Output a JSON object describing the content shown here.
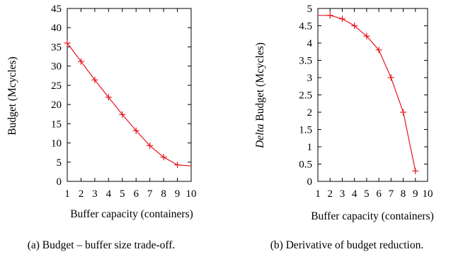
{
  "chart_data": [
    {
      "type": "line",
      "xlabel": "Buffer capacity (containers)",
      "ylabel": "Budget (Mcycles)",
      "caption": "(a) Budget – buffer size trade-off.",
      "xlim": [
        1,
        10
      ],
      "ylim": [
        0,
        45
      ],
      "xticks": [
        1,
        2,
        3,
        4,
        5,
        6,
        7,
        8,
        9,
        10
      ],
      "yticks": [
        0,
        5,
        10,
        15,
        20,
        25,
        30,
        35,
        40,
        45
      ],
      "color": "#e8141e",
      "series": [
        {
          "x": [
            1,
            2,
            3,
            4,
            5,
            6,
            7,
            8,
            9
          ],
          "y": [
            36,
            31.2,
            26.4,
            21.9,
            17.4,
            13.2,
            9.3,
            6.3,
            4.3
          ]
        }
      ],
      "line_end": [
        10,
        4
      ]
    },
    {
      "type": "line",
      "xlabel": "Buffer capacity (containers)",
      "ylabel_italic": "Delta",
      "ylabel_rest": " Budget (Mcycles)",
      "caption": "(b) Derivative of budget reduction.",
      "xlim": [
        1,
        10
      ],
      "ylim": [
        0,
        5
      ],
      "xticks": [
        1,
        2,
        3,
        4,
        5,
        6,
        7,
        8,
        9,
        10
      ],
      "yticks": [
        0,
        0.5,
        1,
        1.5,
        2,
        2.5,
        3,
        3.5,
        4,
        4.5,
        5
      ],
      "color": "#e8141e",
      "series": [
        {
          "x": [
            2,
            3,
            4,
            5,
            6,
            7,
            8,
            9
          ],
          "y": [
            4.8,
            4.7,
            4.5,
            4.2,
            3.8,
            3.0,
            2.0,
            0.3
          ]
        }
      ],
      "line_start": [
        1,
        4.8
      ]
    }
  ]
}
